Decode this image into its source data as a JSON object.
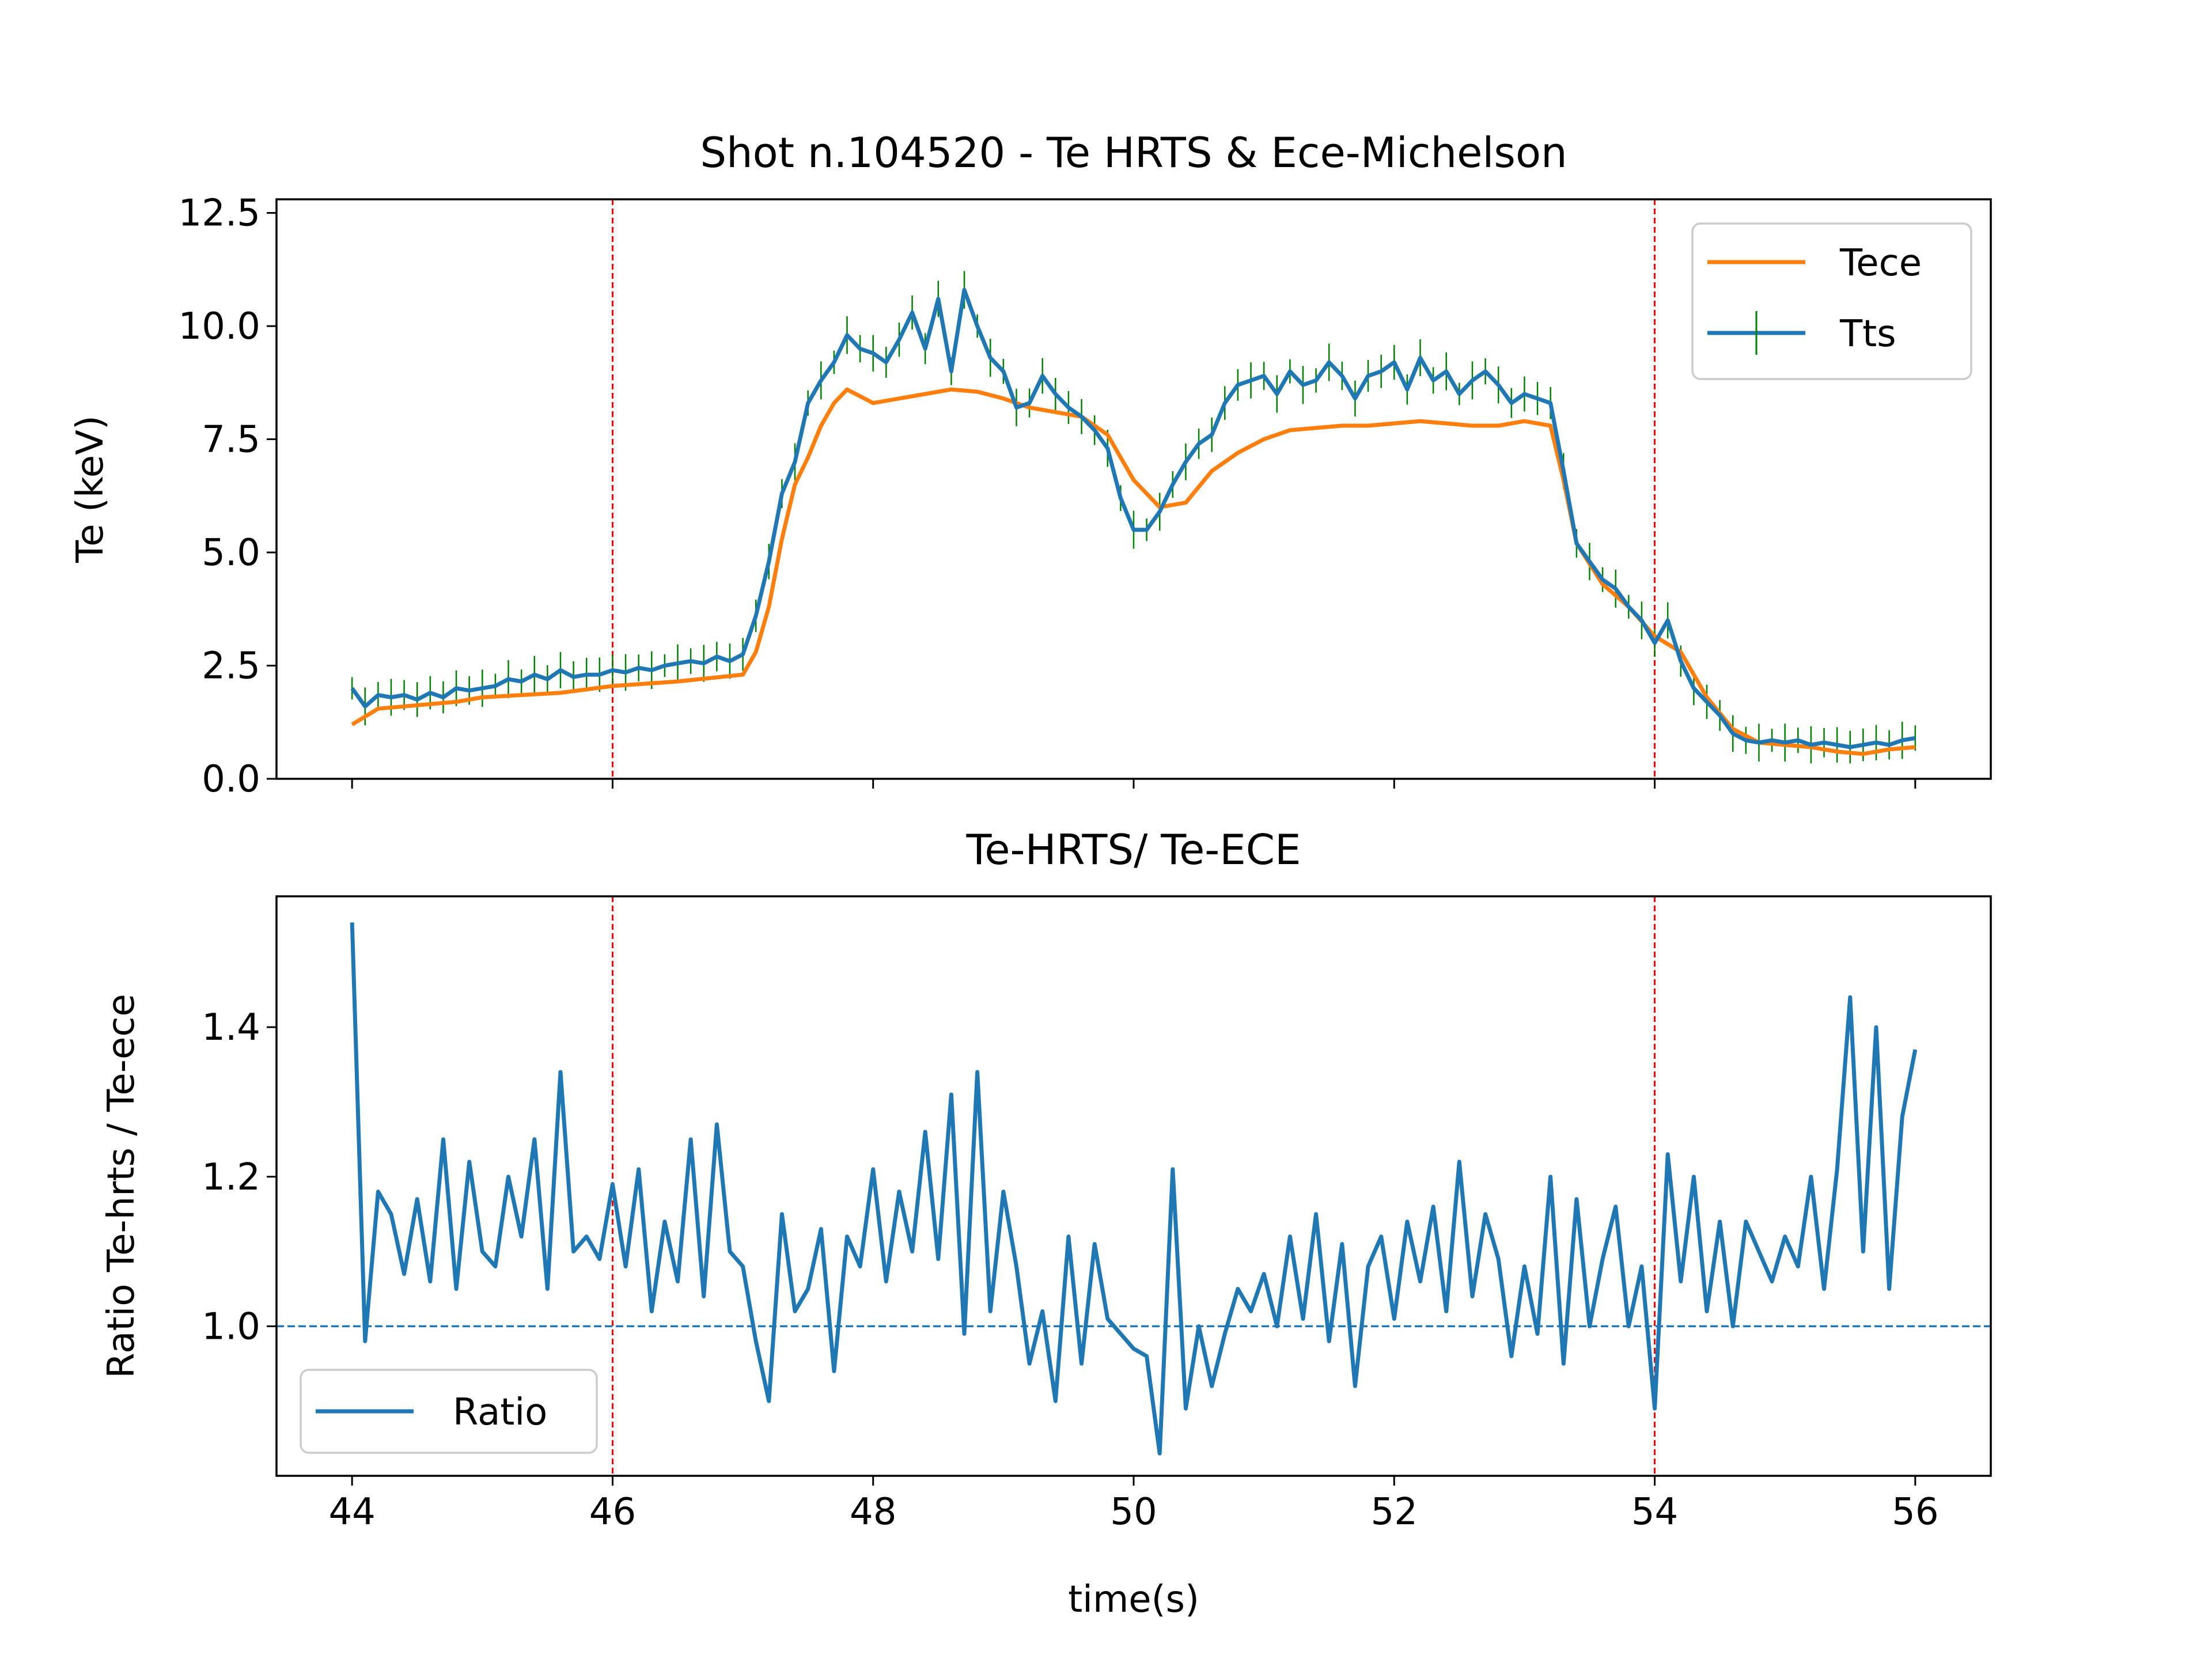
{
  "chart_data": [
    {
      "type": "line",
      "title": "Shot n.104520 - Te HRTS & Ece-Michelson",
      "xlabel": "",
      "ylabel": "Te (keV)",
      "xlim": [
        43.42,
        56.58
      ],
      "ylim": [
        0.0,
        12.8
      ],
      "yticks": [
        "0.0",
        "2.5",
        "5.0",
        "7.5",
        "10.0",
        "12.5"
      ],
      "ytick_values": [
        0.0,
        2.5,
        5.0,
        7.5,
        10.0,
        12.5
      ],
      "xticks": [
        44,
        46,
        48,
        50,
        52,
        54,
        56
      ],
      "vlines": [
        46,
        54
      ],
      "vline_color": "#ff0000",
      "legend_position": "upper-right",
      "grid": false,
      "series": [
        {
          "name": "Tece",
          "color": "#ff7f0e",
          "x": [
            44.0,
            44.2,
            44.4,
            44.6,
            44.8,
            45.0,
            45.3,
            45.6,
            46.0,
            46.5,
            47.0,
            47.1,
            47.2,
            47.3,
            47.4,
            47.5,
            47.6,
            47.7,
            47.8,
            47.9,
            48.0,
            48.2,
            48.4,
            48.6,
            48.8,
            49.0,
            49.2,
            49.4,
            49.6,
            49.8,
            50.0,
            50.2,
            50.4,
            50.6,
            50.8,
            51.0,
            51.2,
            51.4,
            51.6,
            51.8,
            52.0,
            52.2,
            52.4,
            52.6,
            52.8,
            53.0,
            53.2,
            53.3,
            53.4,
            53.6,
            53.8,
            54.0,
            54.2,
            54.4,
            54.6,
            54.8,
            55.0,
            55.2,
            55.4,
            55.6,
            55.8,
            56.0
          ],
          "y": [
            1.2,
            1.55,
            1.6,
            1.65,
            1.7,
            1.8,
            1.85,
            1.9,
            2.05,
            2.15,
            2.3,
            2.8,
            3.8,
            5.3,
            6.5,
            7.1,
            7.8,
            8.3,
            8.6,
            8.45,
            8.3,
            8.4,
            8.5,
            8.6,
            8.55,
            8.4,
            8.2,
            8.1,
            8.0,
            7.6,
            6.6,
            6.0,
            6.1,
            6.8,
            7.2,
            7.5,
            7.7,
            7.75,
            7.8,
            7.8,
            7.85,
            7.9,
            7.85,
            7.8,
            7.8,
            7.9,
            7.8,
            6.6,
            5.2,
            4.3,
            3.8,
            3.15,
            2.8,
            1.8,
            1.1,
            0.8,
            0.75,
            0.7,
            0.6,
            0.55,
            0.65,
            0.7
          ]
        },
        {
          "name": "Tts",
          "color": "#1f77b4",
          "errorbar_color": "#008000",
          "x": [
            44.0,
            44.1,
            44.2,
            44.3,
            44.4,
            44.5,
            44.6,
            44.7,
            44.8,
            44.9,
            45.0,
            45.1,
            45.2,
            45.3,
            45.4,
            45.5,
            45.6,
            45.7,
            45.8,
            45.9,
            46.0,
            46.1,
            46.2,
            46.3,
            46.4,
            46.5,
            46.6,
            46.7,
            46.8,
            46.9,
            47.0,
            47.1,
            47.2,
            47.3,
            47.4,
            47.5,
            47.6,
            47.7,
            47.8,
            47.9,
            48.0,
            48.1,
            48.2,
            48.3,
            48.4,
            48.5,
            48.6,
            48.7,
            48.8,
            48.9,
            49.0,
            49.1,
            49.2,
            49.3,
            49.4,
            49.5,
            49.6,
            49.7,
            49.8,
            49.9,
            50.0,
            50.1,
            50.2,
            50.3,
            50.4,
            50.5,
            50.6,
            50.7,
            50.8,
            50.9,
            51.0,
            51.1,
            51.2,
            51.3,
            51.4,
            51.5,
            51.6,
            51.7,
            51.8,
            51.9,
            52.0,
            52.1,
            52.2,
            52.3,
            52.4,
            52.5,
            52.6,
            52.7,
            52.8,
            52.9,
            53.0,
            53.1,
            53.2,
            53.3,
            53.4,
            53.5,
            53.6,
            53.7,
            53.8,
            53.9,
            54.0,
            54.1,
            54.2,
            54.3,
            54.4,
            54.5,
            54.6,
            54.7,
            54.8,
            54.9,
            55.0,
            55.1,
            55.2,
            55.3,
            55.4,
            55.5,
            55.6,
            55.7,
            55.8,
            55.9,
            56.0
          ],
          "y": [
            2.0,
            1.6,
            1.85,
            1.8,
            1.85,
            1.75,
            1.9,
            1.8,
            2.0,
            1.95,
            2.0,
            2.05,
            2.2,
            2.15,
            2.3,
            2.2,
            2.4,
            2.25,
            2.3,
            2.3,
            2.4,
            2.35,
            2.45,
            2.4,
            2.5,
            2.55,
            2.6,
            2.55,
            2.7,
            2.6,
            2.75,
            3.6,
            4.8,
            6.3,
            7.0,
            8.3,
            8.8,
            9.2,
            9.8,
            9.5,
            9.4,
            9.2,
            9.7,
            10.3,
            9.5,
            10.6,
            9.0,
            10.8,
            10.0,
            9.3,
            9.0,
            8.2,
            8.3,
            8.9,
            8.5,
            8.2,
            8.0,
            7.7,
            7.3,
            6.2,
            5.5,
            5.5,
            5.9,
            6.5,
            7.0,
            7.4,
            7.6,
            8.3,
            8.7,
            8.8,
            8.9,
            8.5,
            9.0,
            8.7,
            8.8,
            9.2,
            8.9,
            8.4,
            8.9,
            9.0,
            9.2,
            8.6,
            9.3,
            8.8,
            9.0,
            8.5,
            8.8,
            9.0,
            8.7,
            8.3,
            8.5,
            8.4,
            8.3,
            6.8,
            5.2,
            4.8,
            4.4,
            4.2,
            3.8,
            3.5,
            3.0,
            3.5,
            2.6,
            2.0,
            1.7,
            1.4,
            1.0,
            0.85,
            0.8,
            0.85,
            0.8,
            0.85,
            0.75,
            0.8,
            0.75,
            0.7,
            0.75,
            0.8,
            0.75,
            0.85,
            0.9
          ],
          "error": 0.35
        }
      ]
    },
    {
      "type": "line",
      "title": "Te-HRTS/ Te-ECE",
      "xlabel": "time(s)",
      "ylabel": "Ratio Te-hrts / Te-ece",
      "xlim": [
        43.42,
        56.58
      ],
      "ylim": [
        0.8,
        1.575
      ],
      "yticks": [
        "1.0",
        "1.2",
        "1.4"
      ],
      "ytick_values": [
        1.0,
        1.2,
        1.4
      ],
      "xticks": [
        "44",
        "46",
        "48",
        "50",
        "52",
        "54",
        "56"
      ],
      "xtick_values": [
        44,
        46,
        48,
        50,
        52,
        54,
        56
      ],
      "vlines": [
        46,
        54
      ],
      "vline_color": "#ff0000",
      "hline": 1.0,
      "hline_color": "#1f77b4",
      "legend_position": "lower-left",
      "grid": false,
      "series": [
        {
          "name": "Ratio",
          "color": "#1f77b4",
          "x": [
            44.0,
            44.1,
            44.2,
            44.3,
            44.4,
            44.5,
            44.6,
            44.7,
            44.8,
            44.9,
            45.0,
            45.1,
            45.2,
            45.3,
            45.4,
            45.5,
            45.6,
            45.7,
            45.8,
            45.9,
            46.0,
            46.1,
            46.2,
            46.3,
            46.4,
            46.5,
            46.6,
            46.7,
            46.8,
            46.9,
            47.0,
            47.1,
            47.2,
            47.3,
            47.4,
            47.5,
            47.6,
            47.7,
            47.8,
            47.9,
            48.0,
            48.1,
            48.2,
            48.3,
            48.4,
            48.5,
            48.6,
            48.7,
            48.8,
            48.9,
            49.0,
            49.1,
            49.2,
            49.3,
            49.4,
            49.5,
            49.6,
            49.7,
            49.8,
            49.9,
            50.0,
            50.1,
            50.2,
            50.3,
            50.4,
            50.5,
            50.6,
            50.7,
            50.8,
            50.9,
            51.0,
            51.1,
            51.2,
            51.3,
            51.4,
            51.5,
            51.6,
            51.7,
            51.8,
            51.9,
            52.0,
            52.1,
            52.2,
            52.3,
            52.4,
            52.5,
            52.6,
            52.7,
            52.8,
            52.9,
            53.0,
            53.1,
            53.2,
            53.3,
            53.4,
            53.5,
            53.6,
            53.7,
            53.8,
            53.9,
            54.0,
            54.1,
            54.2,
            54.3,
            54.4,
            54.5,
            54.6,
            54.7,
            54.8,
            54.9,
            55.0,
            55.1,
            55.2,
            55.3,
            55.4,
            55.5,
            55.6,
            55.7,
            55.8,
            55.9,
            56.0
          ],
          "y": [
            1.54,
            0.98,
            1.18,
            1.15,
            1.07,
            1.17,
            1.06,
            1.25,
            1.05,
            1.22,
            1.1,
            1.08,
            1.2,
            1.12,
            1.25,
            1.05,
            1.34,
            1.1,
            1.12,
            1.09,
            1.19,
            1.08,
            1.21,
            1.02,
            1.14,
            1.06,
            1.25,
            1.04,
            1.27,
            1.1,
            1.08,
            0.98,
            0.9,
            1.15,
            1.02,
            1.05,
            1.13,
            0.94,
            1.12,
            1.08,
            1.21,
            1.06,
            1.18,
            1.1,
            1.26,
            1.09,
            1.31,
            0.99,
            1.34,
            1.02,
            1.18,
            1.08,
            0.95,
            1.02,
            0.9,
            1.12,
            0.95,
            1.11,
            1.01,
            0.99,
            0.97,
            0.96,
            0.83,
            1.21,
            0.89,
            1.0,
            0.92,
            0.99,
            1.05,
            1.02,
            1.07,
            1.0,
            1.12,
            1.01,
            1.15,
            0.98,
            1.11,
            0.92,
            1.08,
            1.12,
            1.01,
            1.14,
            1.06,
            1.16,
            1.02,
            1.22,
            1.04,
            1.15,
            1.09,
            0.96,
            1.08,
            0.99,
            1.2,
            0.95,
            1.17,
            1.0,
            1.09,
            1.16,
            1.0,
            1.08,
            0.89,
            1.23,
            1.06,
            1.2,
            1.02,
            1.14,
            1.0,
            1.14,
            1.1,
            1.06,
            1.12,
            1.08,
            1.2,
            1.05,
            1.21,
            1.44,
            1.1,
            1.4,
            1.05,
            1.28,
            1.37
          ]
        }
      ]
    }
  ]
}
